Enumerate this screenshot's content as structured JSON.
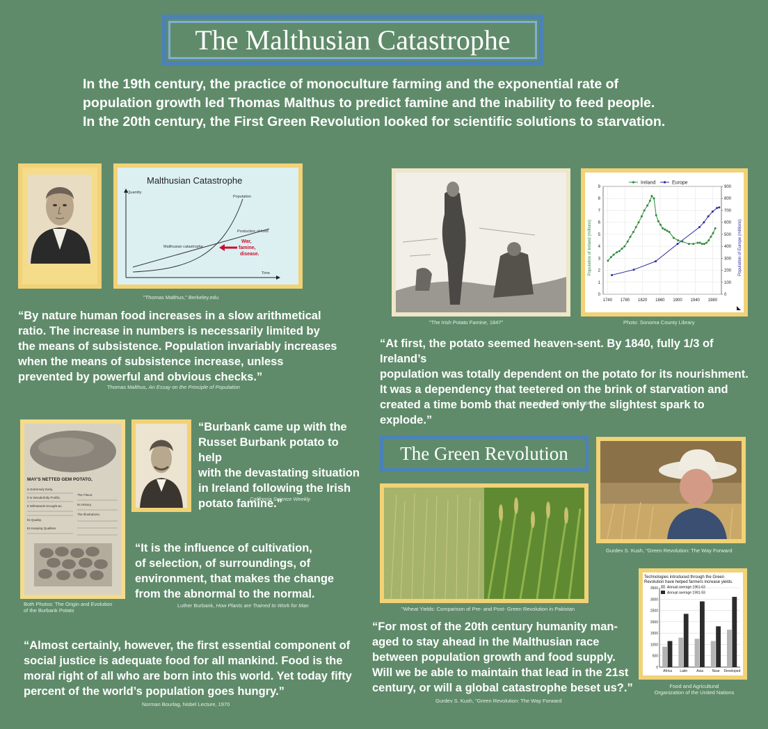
{
  "title": "The Malthusian Catastrophe",
  "intro": [
    "In the 19th century, the practice of monoculture farming and the exponential rate of",
    "population growth led Thomas Malthus to predict famine and the inability to feed people.",
    "In the 20th century, the First Green Revolution looked for scientific solutions to starvation."
  ],
  "malthus_chart": {
    "title": "Malthusian Catastrophe",
    "ylabel": "Quantity",
    "xlabel": "Time",
    "population_label": "Population",
    "food_label": "Production of food",
    "catastrophe_label": "Malthusian catastrophe",
    "war_label": "War,",
    "famine_label": "famine,",
    "disease_label": "disease."
  },
  "malthus_caption": "\"Thomas Malthus,\" Berkeley.edu",
  "quote1": [
    "“By nature human food increases in a slow arithmetical",
    "ratio. The increase in numbers is necessarily limited by",
    "the means of subsistence. Population invariably increases",
    "when the means of subsistence increase, unless",
    "prevented by powerful and obvious checks.”"
  ],
  "quote1_cite_author": "Thomas Malthus,",
  "quote1_cite_work": "An Essay on the Principle of Population",
  "famine_caption": "\"The Irish Potato Famine, 1847\"",
  "chart_caption": "Photo: Sonoma County Library",
  "quote2": [
    "“At first, the potato seemed heaven-sent. By 1840, fully 1/3 of Ireland’s",
    "population was totally dependent on the potato for its nourishment.",
    "It was a dependency that teetered on the brink of starvation and",
    "created a time bomb that needed only the slightest spark to explode.”"
  ],
  "quote2_cite": "\"The Irish Potato Famine, 1847\"",
  "chart_data": {
    "type": "line",
    "title": "",
    "xlabel": "",
    "ylabel": "Population of Ireland (millions)",
    "y2label": "Population of Europe (millions)",
    "xlim": [
      1730,
      2000
    ],
    "ylim": [
      0,
      9
    ],
    "y2lim": [
      0,
      900
    ],
    "xticks": [
      "1740",
      "1780",
      "1820",
      "1860",
      "1900",
      "1940",
      "1980"
    ],
    "yticks": [
      "0",
      "1",
      "2",
      "3",
      "4",
      "5",
      "6",
      "7",
      "8",
      "9"
    ],
    "y2ticks": [
      "0",
      "100",
      "200",
      "300",
      "400",
      "500",
      "600",
      "700",
      "800",
      "900"
    ],
    "legend_position": "top",
    "series": [
      {
        "name": "Ireland",
        "color": "#2e8b3a",
        "axis": "left",
        "x": [
          1741,
          1748,
          1754,
          1761,
          1767,
          1773,
          1779,
          1786,
          1792,
          1799,
          1805,
          1811,
          1818,
          1824,
          1831,
          1837,
          1841,
          1846,
          1851,
          1856,
          1861,
          1866,
          1871,
          1876,
          1881,
          1891,
          1901,
          1911,
          1926,
          1936,
          1946,
          1951,
          1956,
          1961,
          1966,
          1971,
          1976,
          1981,
          1986
        ],
        "y": [
          2.8,
          3.1,
          3.3,
          3.5,
          3.6,
          3.8,
          4.0,
          4.4,
          4.8,
          5.2,
          5.6,
          6.0,
          6.5,
          7.0,
          7.4,
          7.8,
          8.2,
          8.0,
          6.6,
          6.1,
          5.8,
          5.5,
          5.4,
          5.3,
          5.2,
          4.7,
          4.5,
          4.4,
          4.2,
          4.2,
          4.3,
          4.3,
          4.2,
          4.2,
          4.3,
          4.5,
          4.8,
          5.1,
          5.5
        ]
      },
      {
        "name": "Europe",
        "color": "#2a2a9c",
        "axis": "right",
        "x": [
          1750,
          1800,
          1850,
          1900,
          1950,
          1960,
          1970,
          1980,
          1990,
          1995
        ],
        "y": [
          160,
          205,
          275,
          420,
          560,
          600,
          650,
          690,
          720,
          725
        ]
      }
    ]
  },
  "burbank_quote": [
    "“Burbank came up with the",
    "Russet Burbank potato to help",
    "with the devastating situation",
    "in Ireland following the Irish",
    "potato famine.”"
  ],
  "burbank_cite": "California Science Weekly",
  "newspaper": {
    "headline": "MAY'S NETTED GEM POTATO,",
    "lines": [
      "Is Extremely Early,",
      "It Is Wonderfully Prolific,",
      "It Withstands Drought &c.",
      "Its Quality.",
      "Its Keeping Qualities."
    ],
    "side": [
      "The Flavor.",
      "Its History.",
      "The Illustrations."
    ]
  },
  "quote3": [
    "“It is the influence of cultivation,",
    "of selection, of surroundings, of",
    "environment, that makes the change",
    "from the abnormal to the normal."
  ],
  "quote3_cite_author": "Luther Burbank,",
  "quote3_cite_work": "How Plants are Trained to Work for Man",
  "both_photos_caption": [
    "Both Photos: The Origin and Evolution",
    "of the Burbank Potato"
  ],
  "green_title": "The Green Revolution",
  "wheat_caption": "\"Wheat Yields: Comparison of Pre- and Post- Green Revolution in Pakistan",
  "farmer_caption": "Gurdev S. Kush, \"Green Revolution: The Way Forward",
  "quote4": [
    "“Almost certainly, however, the first essential component of",
    "social justice is adequate food for all mankind. Food is the",
    "moral right of all who are born into this world. Yet today fifty",
    "percent of the world’s population goes hungry.”"
  ],
  "quote4_cite": "Norman Bourlag, Nobel Lecture, 1970",
  "quote5": [
    "“For most of the 20th century humanity man-",
    "aged to stay ahead in the Malthusian race",
    "between population growth and food supply.",
    "Will we be able to maintain that lead in the 21st",
    "century, or will a global catastrophe beset us?.”"
  ],
  "quote5_cite": "Gurdev S. Kush, \"Green Revolution: The Way Forward",
  "bar_chart": {
    "type": "bar",
    "title": [
      "Technologies introduced through the Green",
      "Revolution have helped farmers increase yields."
    ],
    "categories": [
      "Africa",
      "Latin",
      "Asia",
      "Near",
      "Developed"
    ],
    "yticks": [
      "0",
      "500",
      "1000",
      "1500",
      "2000",
      "2500",
      "3000",
      "3500"
    ],
    "ylim": [
      0,
      3500
    ],
    "legend_position": "top-left",
    "series": [
      {
        "name": "Annual average 1961-63",
        "color": "#b4b4b4",
        "values": [
          900,
          1300,
          1250,
          1150,
          1650
        ]
      },
      {
        "name": "Annual average 1991-93",
        "color": "#2c2c2c",
        "values": [
          1150,
          2350,
          2900,
          1800,
          3100
        ]
      }
    ]
  },
  "bar_caption": [
    "Food and Agricultural",
    "Organization of the United Nations"
  ]
}
